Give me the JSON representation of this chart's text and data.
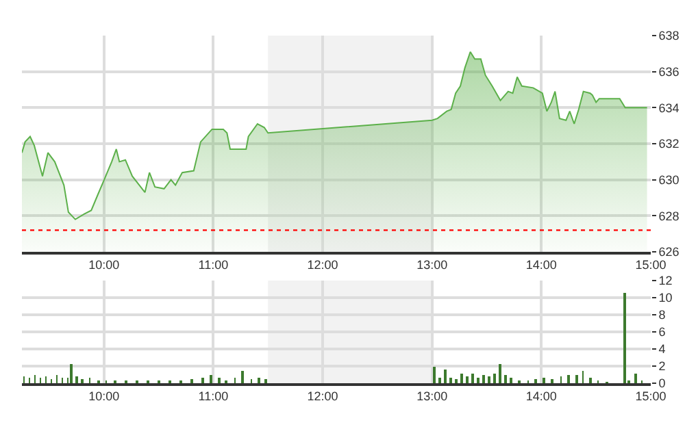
{
  "chart_data": [
    {
      "type": "area",
      "xlim": [
        9.25,
        15
      ],
      "xticks": [
        {
          "value": 10,
          "label": "10:00"
        },
        {
          "value": 11,
          "label": "11:00"
        },
        {
          "value": 12,
          "label": "12:00"
        },
        {
          "value": 13,
          "label": "13:00"
        },
        {
          "value": 14,
          "label": "14:00"
        },
        {
          "value": 15,
          "label": "15:00"
        }
      ],
      "ylim": [
        626,
        638
      ],
      "yticks": [
        626,
        628,
        630,
        632,
        634,
        636,
        638
      ],
      "grid": true,
      "legend": false,
      "series": [
        {
          "color": "#5cb04a",
          "x": [
            9.25,
            9.279,
            9.325,
            9.363,
            9.438,
            9.488,
            9.55,
            9.634,
            9.675,
            9.738,
            9.821,
            9.884,
            9.946,
            10.009,
            10.071,
            10.113,
            10.141,
            10.196,
            10.259,
            10.375,
            10.416,
            10.466,
            10.55,
            10.613,
            10.654,
            10.716,
            10.821,
            10.884,
            10.988,
            11.091,
            11.125,
            11.154,
            11.216,
            11.3,
            11.321,
            11.404,
            11.466,
            11.5,
            13.0,
            13.05,
            13.134,
            13.175,
            13.216,
            13.259,
            13.3,
            13.35,
            13.391,
            13.446,
            13.488,
            13.55,
            13.625,
            13.696,
            13.738,
            13.779,
            13.821,
            13.925,
            14.009,
            14.05,
            14.091,
            14.125,
            14.166,
            14.225,
            14.259,
            14.3,
            14.341,
            14.384,
            14.446,
            14.466,
            14.5,
            14.529,
            14.716,
            14.766,
            14.966
          ],
          "values": [
            631.5,
            632.1,
            632.4,
            631.9,
            630.2,
            631.5,
            631.0,
            629.7,
            628.2,
            627.8,
            628.1,
            628.3,
            629.2,
            630.1,
            631.0,
            631.7,
            631.0,
            631.1,
            630.2,
            629.3,
            630.4,
            629.6,
            629.5,
            630.0,
            629.7,
            630.4,
            630.5,
            632.1,
            632.8,
            632.8,
            632.6,
            631.7,
            631.7,
            631.7,
            632.4,
            633.1,
            632.9,
            632.6,
            633.3,
            633.4,
            633.8,
            633.9,
            634.8,
            635.2,
            636.2,
            637.1,
            636.7,
            636.7,
            635.8,
            635.2,
            634.4,
            634.9,
            634.8,
            635.7,
            635.2,
            635.1,
            634.8,
            633.8,
            634.3,
            634.9,
            633.4,
            633.3,
            633.8,
            633.1,
            633.9,
            634.9,
            634.8,
            634.7,
            634.3,
            634.5,
            634.5,
            634.0,
            634.0
          ]
        }
      ],
      "ref_lines": [
        {
          "axis": "y",
          "value": 627.2,
          "color": "#ff0000",
          "line_style": "dotted"
        }
      ],
      "bands": [
        {
          "axis": "x",
          "from": 11.5,
          "to": 13,
          "color": "#f2f2f2"
        }
      ]
    },
    {
      "type": "bar",
      "xlim": [
        9.25,
        15
      ],
      "xticks": [
        {
          "value": 10,
          "label": "10:00"
        },
        {
          "value": 11,
          "label": "11:00"
        },
        {
          "value": 12,
          "label": "12:00"
        },
        {
          "value": 13,
          "label": "13:00"
        },
        {
          "value": 14,
          "label": "14:00"
        },
        {
          "value": 15,
          "label": "15:00"
        }
      ],
      "ylim": [
        0,
        12
      ],
      "yticks": [
        0,
        2,
        4,
        6,
        8,
        10,
        12
      ],
      "grid": true,
      "legend": false,
      "x": [
        9.27,
        9.32,
        9.37,
        9.42,
        9.47,
        9.52,
        9.57,
        9.62,
        9.67,
        9.7,
        9.75,
        9.8,
        9.87,
        9.95,
        10.02,
        10.1,
        10.2,
        10.3,
        10.4,
        10.5,
        10.6,
        10.7,
        10.8,
        10.9,
        10.98,
        11.05,
        11.12,
        11.2,
        11.27,
        11.35,
        11.42,
        11.48,
        13.02,
        13.07,
        13.12,
        13.17,
        13.22,
        13.27,
        13.32,
        13.37,
        13.42,
        13.47,
        13.52,
        13.57,
        13.62,
        13.67,
        13.72,
        13.8,
        13.88,
        13.95,
        14.02,
        14.1,
        14.18,
        14.25,
        14.32,
        14.38,
        14.45,
        14.52,
        14.6,
        14.76,
        14.8,
        14.86,
        14.92
      ],
      "series": [
        {
          "color": "#3d7a2e",
          "values": [
            0.8,
            0.7,
            1.0,
            0.6,
            0.8,
            0.5,
            0.9,
            0.6,
            0.7,
            2.2,
            0.8,
            0.5,
            0.6,
            0.3,
            0.4,
            0.4,
            0.3,
            0.2,
            0.2,
            0.3,
            0.3,
            0.4,
            0.5,
            0.7,
            1.0,
            0.6,
            0.4,
            0.7,
            1.5,
            0.5,
            0.7,
            0.5,
            2.0,
            0.6,
            1.6,
            0.7,
            0.5,
            1.1,
            0.8,
            1.2,
            0.7,
            1.0,
            0.8,
            1.1,
            2.3,
            0.9,
            0.6,
            0.4,
            0.4,
            0.5,
            0.6,
            0.5,
            0.8,
            1.0,
            0.9,
            1.5,
            0.6,
            0.3,
            0.1,
            10.5,
            0.3,
            1.1,
            0.2
          ]
        }
      ],
      "bands": [
        {
          "axis": "x",
          "from": 11.5,
          "to": 13,
          "color": "#f2f2f2"
        }
      ]
    }
  ]
}
